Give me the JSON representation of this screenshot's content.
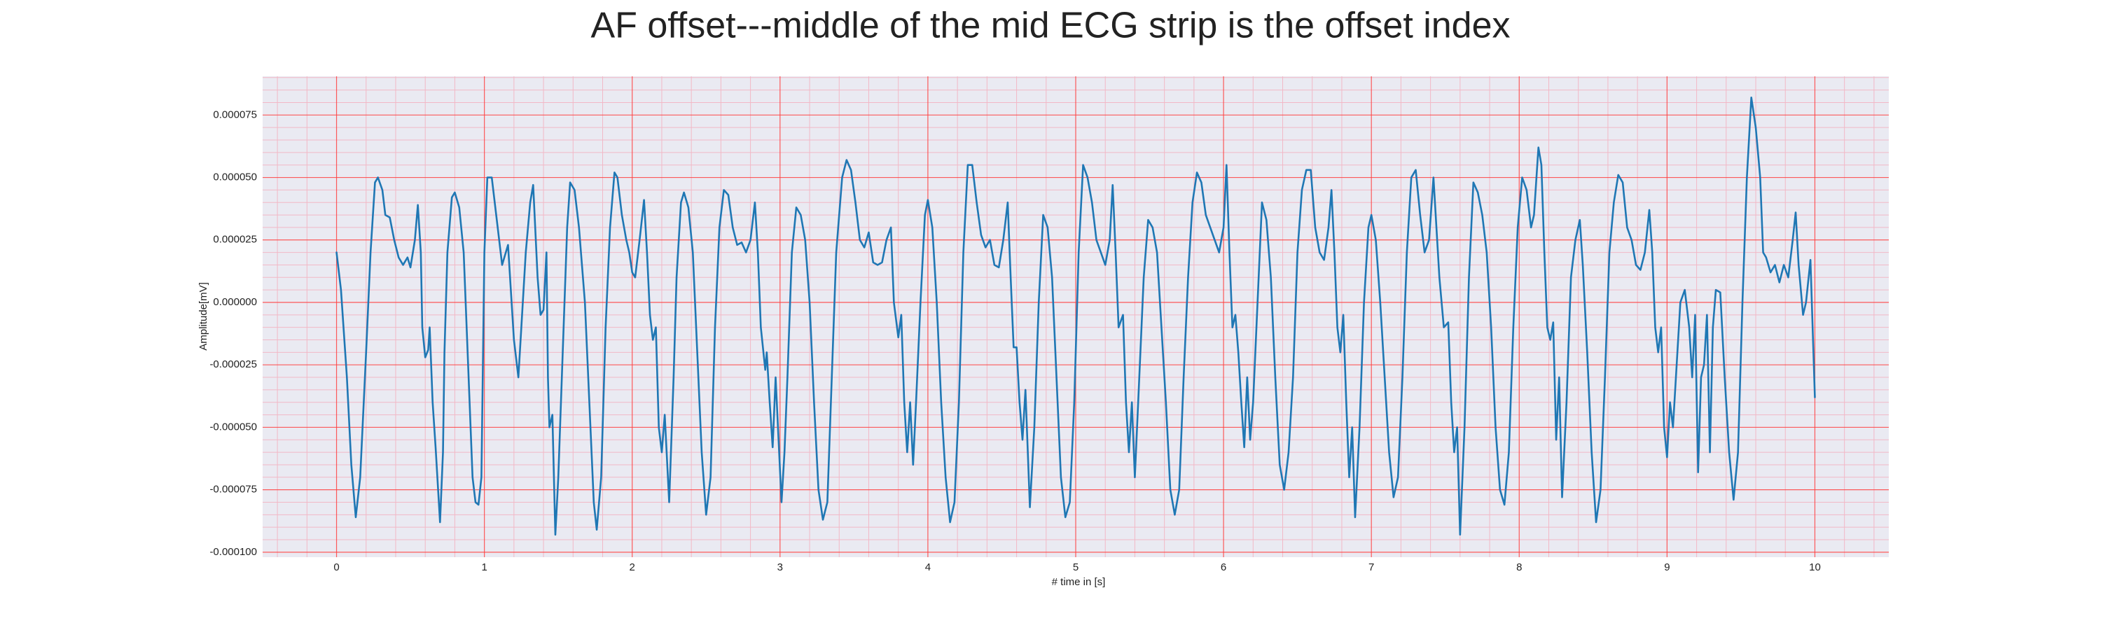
{
  "chart_data": {
    "type": "line",
    "title": "AF offset---middle of the mid ECG strip is the offset index",
    "x_label": "# time in [s]",
    "y_label": "Amplitude[mV]",
    "color": "#1f77b4",
    "grid": true,
    "minor_grid": true,
    "xlim": [
      -0.5,
      10.5
    ],
    "ylim": [
      -0.000102,
      9.05e-05
    ],
    "xticks": [
      0,
      1,
      2,
      3,
      4,
      5,
      6,
      7,
      8,
      9,
      10
    ],
    "yticks": [
      {
        "value": -0.0001,
        "label": "-0.000100"
      },
      {
        "value": -7.5e-05,
        "label": "-0.000075"
      },
      {
        "value": -5e-05,
        "label": "-0.000050"
      },
      {
        "value": -2.5e-05,
        "label": "-0.000025"
      },
      {
        "value": 0,
        "label": "0.000000"
      },
      {
        "value": 2.5e-05,
        "label": "0.000025"
      },
      {
        "value": 5e-05,
        "label": "0.000050"
      },
      {
        "value": 7.5e-05,
        "label": "0.000075"
      }
    ],
    "x": [
      0,
      0.03,
      0.07,
      0.1,
      0.13,
      0.16,
      0.2,
      0.23,
      0.26,
      0.28,
      0.31,
      0.33,
      0.36,
      0.39,
      0.42,
      0.45,
      0.48,
      0.5,
      0.53,
      0.55,
      0.57,
      0.58,
      0.6,
      0.62,
      0.63,
      0.65,
      0.67,
      0.7,
      0.72,
      0.73,
      0.75,
      0.78,
      0.8,
      0.83,
      0.86,
      0.88,
      0.9,
      0.92,
      0.94,
      0.96,
      0.98,
      1.0,
      1.02,
      1.05,
      1.08,
      1.1,
      1.12,
      1.16,
      1.2,
      1.23,
      1.25,
      1.28,
      1.31,
      1.33,
      1.36,
      1.38,
      1.4,
      1.42,
      1.43,
      1.44,
      1.46,
      1.48,
      1.5,
      1.53,
      1.56,
      1.58,
      1.61,
      1.64,
      1.68,
      1.71,
      1.74,
      1.76,
      1.79,
      1.82,
      1.85,
      1.88,
      1.9,
      1.93,
      1.96,
      1.98,
      2.0,
      2.02,
      2.05,
      2.08,
      2.1,
      2.12,
      2.14,
      2.16,
      2.18,
      2.2,
      2.22,
      2.25,
      2.28,
      2.3,
      2.33,
      2.35,
      2.38,
      2.41,
      2.44,
      2.47,
      2.5,
      2.53,
      2.56,
      2.59,
      2.62,
      2.65,
      2.68,
      2.71,
      2.74,
      2.77,
      2.8,
      2.83,
      2.85,
      2.87,
      2.9,
      2.91,
      2.93,
      2.95,
      2.97,
      2.99,
      3.01,
      3.03,
      3.05,
      3.08,
      3.11,
      3.14,
      3.17,
      3.2,
      3.23,
      3.26,
      3.29,
      3.32,
      3.35,
      3.38,
      3.42,
      3.45,
      3.48,
      3.51,
      3.54,
      3.57,
      3.6,
      3.63,
      3.66,
      3.69,
      3.72,
      3.75,
      3.77,
      3.8,
      3.82,
      3.84,
      3.86,
      3.88,
      3.9,
      3.92,
      3.95,
      3.98,
      4.0,
      4.03,
      4.06,
      4.09,
      4.12,
      4.15,
      4.18,
      4.21,
      4.24,
      4.27,
      4.3,
      4.33,
      4.36,
      4.39,
      4.42,
      4.45,
      4.48,
      4.51,
      4.54,
      4.56,
      4.58,
      4.6,
      4.62,
      4.64,
      4.66,
      4.69,
      4.72,
      4.75,
      4.78,
      4.81,
      4.84,
      4.87,
      4.9,
      4.93,
      4.96,
      4.99,
      5.02,
      5.05,
      5.08,
      5.11,
      5.14,
      5.17,
      5.2,
      5.23,
      5.25,
      5.27,
      5.29,
      5.32,
      5.34,
      5.36,
      5.38,
      5.4,
      5.43,
      5.46,
      5.49,
      5.52,
      5.55,
      5.58,
      5.61,
      5.64,
      5.67,
      5.7,
      5.73,
      5.76,
      5.79,
      5.82,
      5.85,
      5.88,
      5.91,
      5.94,
      5.97,
      6.0,
      6.02,
      6.04,
      6.06,
      6.08,
      6.1,
      6.12,
      6.14,
      6.16,
      6.18,
      6.2,
      6.23,
      6.26,
      6.29,
      6.32,
      6.35,
      6.38,
      6.41,
      6.44,
      6.47,
      6.5,
      6.53,
      6.56,
      6.59,
      6.62,
      6.65,
      6.68,
      6.71,
      6.73,
      6.75,
      6.77,
      6.79,
      6.81,
      6.83,
      6.85,
      6.87,
      6.89,
      6.92,
      6.95,
      6.98,
      7.0,
      7.03,
      7.06,
      7.09,
      7.12,
      7.15,
      7.18,
      7.21,
      7.24,
      7.27,
      7.3,
      7.33,
      7.36,
      7.39,
      7.42,
      7.44,
      7.46,
      7.49,
      7.52,
      7.54,
      7.56,
      7.58,
      7.6,
      7.63,
      7.66,
      7.69,
      7.72,
      7.75,
      7.78,
      7.81,
      7.84,
      7.87,
      7.9,
      7.93,
      7.96,
      7.99,
      8.02,
      8.05,
      8.08,
      8.1,
      8.13,
      8.15,
      8.17,
      8.19,
      8.21,
      8.23,
      8.25,
      8.27,
      8.29,
      8.32,
      8.35,
      8.38,
      8.41,
      8.43,
      8.46,
      8.49,
      8.52,
      8.55,
      8.58,
      8.61,
      8.64,
      8.67,
      8.7,
      8.73,
      8.76,
      8.79,
      8.82,
      8.85,
      8.88,
      8.9,
      8.92,
      8.94,
      8.96,
      8.98,
      9.0,
      9.02,
      9.04,
      9.06,
      9.09,
      9.12,
      9.15,
      9.17,
      9.19,
      9.21,
      9.23,
      9.25,
      9.27,
      9.29,
      9.31,
      9.33,
      9.36,
      9.39,
      9.42,
      9.45,
      9.48,
      9.51,
      9.54,
      9.57,
      9.6,
      9.63,
      9.65,
      9.67,
      9.7,
      9.73,
      9.76,
      9.79,
      9.82,
      9.85,
      9.87,
      9.89,
      9.92,
      9.94,
      9.97,
      10.0
    ],
    "values": [
      2e-05,
      5e-06,
      -3e-05,
      -6.5e-05,
      -8.6e-05,
      -7e-05,
      -2e-05,
      2e-05,
      4.8e-05,
      5e-05,
      4.5e-05,
      3.5e-05,
      3.4e-05,
      2.5e-05,
      1.8e-05,
      1.5e-05,
      1.8e-05,
      1.4e-05,
      2.5e-05,
      3.9e-05,
      2e-05,
      -1e-05,
      -2.2e-05,
      -1.9e-05,
      -1e-05,
      -4e-05,
      -5.8e-05,
      -8.8e-05,
      -6e-05,
      -2e-05,
      2e-05,
      4.2e-05,
      4.4e-05,
      3.8e-05,
      2e-05,
      -1e-05,
      -4e-05,
      -7e-05,
      -8e-05,
      -8.1e-05,
      -7e-05,
      2e-05,
      5e-05,
      5e-05,
      3.5e-05,
      2.5e-05,
      1.5e-05,
      2.3e-05,
      -1.5e-05,
      -3e-05,
      -1e-05,
      2e-05,
      4e-05,
      4.7e-05,
      1e-05,
      -5e-06,
      -3e-06,
      2e-05,
      -3e-05,
      -5e-05,
      -4.5e-05,
      -9.3e-05,
      -7e-05,
      -2e-05,
      3e-05,
      4.8e-05,
      4.5e-05,
      3e-05,
      0,
      -4e-05,
      -8e-05,
      -9.1e-05,
      -7e-05,
      -1e-05,
      3e-05,
      5.2e-05,
      5e-05,
      3.5e-05,
      2.5e-05,
      2e-05,
      1.2e-05,
      1e-05,
      2.5e-05,
      4.1e-05,
      2e-05,
      -5e-06,
      -1.5e-05,
      -1e-05,
      -5e-05,
      -6e-05,
      -4.5e-05,
      -8e-05,
      -3e-05,
      1e-05,
      4e-05,
      4.4e-05,
      3.8e-05,
      2e-05,
      -2e-05,
      -6e-05,
      -8.5e-05,
      -7e-05,
      -1e-05,
      3e-05,
      4.5e-05,
      4.3e-05,
      3e-05,
      2.3e-05,
      2.4e-05,
      2e-05,
      2.5e-05,
      4e-05,
      2e-05,
      -1e-05,
      -2.7e-05,
      -2e-05,
      -4e-05,
      -5.8e-05,
      -3e-05,
      -5.5e-05,
      -8e-05,
      -6e-05,
      -3e-05,
      2e-05,
      3.8e-05,
      3.5e-05,
      2.5e-05,
      0,
      -4e-05,
      -7.5e-05,
      -8.7e-05,
      -8e-05,
      -3e-05,
      2e-05,
      5e-05,
      5.7e-05,
      5.3e-05,
      4e-05,
      2.5e-05,
      2.2e-05,
      2.8e-05,
      1.6e-05,
      1.5e-05,
      1.6e-05,
      2.5e-05,
      3e-05,
      0,
      -1.4e-05,
      -5e-06,
      -4e-05,
      -6e-05,
      -4e-05,
      -6.5e-05,
      -4e-05,
      0,
      3.5e-05,
      4.1e-05,
      3e-05,
      0,
      -4e-05,
      -7e-05,
      -8.8e-05,
      -8e-05,
      -4e-05,
      2e-05,
      5.5e-05,
      5.5e-05,
      4e-05,
      2.7e-05,
      2.2e-05,
      2.5e-05,
      1.5e-05,
      1.4e-05,
      2.5e-05,
      4e-05,
      1e-05,
      -1.8e-05,
      -1.8e-05,
      -4e-05,
      -5.5e-05,
      -3.5e-05,
      -8.2e-05,
      -5e-05,
      0,
      3.5e-05,
      3e-05,
      1e-05,
      -3e-05,
      -7e-05,
      -8.6e-05,
      -8e-05,
      -4e-05,
      2e-05,
      5.5e-05,
      5e-05,
      4e-05,
      2.5e-05,
      2e-05,
      1.5e-05,
      2.5e-05,
      4.7e-05,
      2e-05,
      -1e-05,
      -5e-06,
      -4e-05,
      -6e-05,
      -4e-05,
      -7e-05,
      -3e-05,
      1e-05,
      3.3e-05,
      3e-05,
      2e-05,
      -1e-05,
      -4e-05,
      -7.5e-05,
      -8.5e-05,
      -7.5e-05,
      -3e-05,
      1e-05,
      4e-05,
      5.2e-05,
      4.8e-05,
      3.5e-05,
      3e-05,
      2.5e-05,
      2e-05,
      3e-05,
      5.5e-05,
      2e-05,
      -1e-05,
      -5e-06,
      -2e-05,
      -4e-05,
      -5.8e-05,
      -3e-05,
      -5.5e-05,
      -4e-05,
      0,
      4e-05,
      3.3e-05,
      1e-05,
      -3e-05,
      -6.5e-05,
      -7.5e-05,
      -6e-05,
      -3e-05,
      2e-05,
      4.5e-05,
      5.3e-05,
      5.3e-05,
      3e-05,
      2e-05,
      1.7e-05,
      3e-05,
      4.5e-05,
      2e-05,
      -1e-05,
      -2e-05,
      -5e-06,
      -4e-05,
      -7e-05,
      -5e-05,
      -8.6e-05,
      -5e-05,
      0,
      3e-05,
      3.5e-05,
      2.5e-05,
      0,
      -3e-05,
      -6e-05,
      -7.8e-05,
      -7e-05,
      -3e-05,
      2e-05,
      5e-05,
      5.3e-05,
      3.5e-05,
      2e-05,
      2.5e-05,
      5e-05,
      3e-05,
      1e-05,
      -1e-05,
      -8e-06,
      -4e-05,
      -6e-05,
      -5e-05,
      -9.3e-05,
      -5e-05,
      1e-05,
      4.8e-05,
      4.4e-05,
      3.5e-05,
      2e-05,
      -1e-05,
      -5e-05,
      -7.5e-05,
      -8.1e-05,
      -6e-05,
      -1e-05,
      3e-05,
      5e-05,
      4.5e-05,
      3e-05,
      3.5e-05,
      6.2e-05,
      5.5e-05,
      2e-05,
      -1e-05,
      -1.5e-05,
      -8e-06,
      -5.5e-05,
      -3e-05,
      -7.8e-05,
      -4e-05,
      1e-05,
      2.5e-05,
      3.3e-05,
      1.5e-05,
      -2e-05,
      -6e-05,
      -8.8e-05,
      -7.5e-05,
      -3e-05,
      2e-05,
      4e-05,
      5.1e-05,
      4.8e-05,
      3e-05,
      2.5e-05,
      1.5e-05,
      1.3e-05,
      2e-05,
      3.7e-05,
      2e-05,
      -1e-05,
      -2e-05,
      -1e-05,
      -5e-05,
      -6.2e-05,
      -4e-05,
      -5e-05,
      -3e-05,
      0,
      5e-06,
      -1e-05,
      -3e-05,
      -5e-06,
      -6.8e-05,
      -3e-05,
      -2.5e-05,
      -5e-06,
      -6e-05,
      -1e-05,
      5e-06,
      4e-06,
      -3e-05,
      -6e-05,
      -7.9e-05,
      -6e-05,
      0,
      5e-05,
      8.2e-05,
      7e-05,
      5e-05,
      2e-05,
      1.8e-05,
      1.2e-05,
      1.5e-05,
      8e-06,
      1.5e-05,
      1e-05,
      2.5e-05,
      3.6e-05,
      1.5e-05,
      -5e-06,
      0,
      1.7e-05,
      -3.8e-05
    ]
  }
}
